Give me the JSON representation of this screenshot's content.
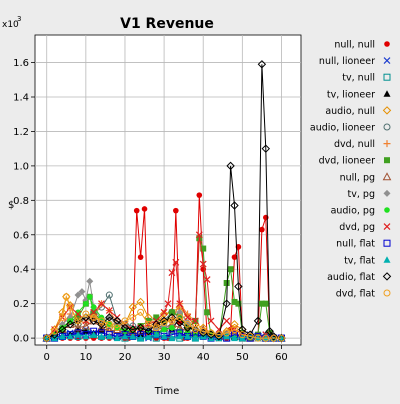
{
  "chart_data": {
    "type": "line",
    "title": "V1 Revenue",
    "xlabel": "Time",
    "ylabel": "$",
    "y_multiplier_label": "x10",
    "y_multiplier_exp": "3",
    "xlim": [
      -3,
      65
    ],
    "ylim": [
      -0.04,
      1.76
    ],
    "xticks": [
      0,
      10,
      20,
      30,
      40,
      50,
      60
    ],
    "yticks": [
      0.0,
      0.2,
      0.4,
      0.6,
      0.8,
      1.0,
      1.2,
      1.4,
      1.6
    ],
    "ytick_labels": [
      "0.0",
      "0.2",
      "0.4",
      "0.6",
      "0.8",
      "1.0",
      "1.2",
      "1.4",
      "1.6"
    ],
    "grid": true,
    "legend_position": "right",
    "series": [
      {
        "name": "null, null",
        "color": "#e00000",
        "marker": "dot",
        "x": [
          0,
          2,
          4,
          6,
          8,
          10,
          12,
          14,
          16,
          18,
          20,
          21,
          22,
          23,
          24,
          25,
          26,
          28,
          30,
          31,
          32,
          33,
          34,
          35,
          36,
          38,
          39,
          40,
          41,
          42,
          44,
          46,
          47,
          48,
          49,
          50,
          52,
          54,
          55,
          56,
          57,
          58,
          60
        ],
        "y": [
          0,
          0,
          0,
          0,
          0,
          0,
          0,
          0,
          0,
          0,
          0,
          0,
          0.02,
          0.74,
          0.47,
          0.75,
          0.03,
          0,
          0,
          0,
          0.05,
          0.74,
          0.09,
          0,
          0,
          0.05,
          0.83,
          0.4,
          0.02,
          0,
          0,
          0,
          0.05,
          0.47,
          0.53,
          0.02,
          0,
          0,
          0.63,
          0.7,
          0.02,
          0,
          0
        ]
      },
      {
        "name": "null, lioneer",
        "color": "#2040d0",
        "marker": "x",
        "x": [
          0,
          2,
          4,
          6,
          8,
          10,
          12,
          14,
          16,
          18,
          20,
          22,
          24,
          26,
          28,
          30,
          32,
          34,
          36,
          38,
          40,
          42,
          44,
          46,
          48,
          50,
          52,
          54,
          56,
          58,
          60
        ],
        "y": [
          0,
          0,
          0.02,
          0.03,
          0.01,
          0.05,
          0.03,
          0.04,
          0.06,
          0.02,
          0.03,
          0.02,
          0.01,
          0,
          0.02,
          0.05,
          0.06,
          0.03,
          0.01,
          0.02,
          0.03,
          0.01,
          0,
          0.02,
          0.03,
          0,
          0.02,
          0.01,
          0.02,
          0,
          0
        ]
      },
      {
        "name": "tv, null",
        "color": "#009090",
        "marker": "square-open",
        "x": [
          0,
          2,
          4,
          6,
          8,
          10,
          12,
          14,
          16,
          18,
          20,
          22,
          24,
          26,
          28,
          30,
          32,
          34,
          36,
          38,
          40,
          42,
          44,
          46,
          48,
          50,
          52,
          54,
          56,
          58,
          60
        ],
        "y": [
          0,
          0,
          0.01,
          0.02,
          0.01,
          0.03,
          0.02,
          0.01,
          0.02,
          0.01,
          0,
          0.01,
          0,
          0.01,
          0,
          0.02,
          0.01,
          0,
          0.01,
          0,
          0.02,
          0,
          0.01,
          0,
          0.01,
          0,
          0,
          0.01,
          0,
          0,
          0
        ]
      },
      {
        "name": "tv, lioneer",
        "color": "#000000",
        "marker": "triangle",
        "x": [
          0,
          2,
          4,
          6,
          8,
          10,
          12,
          14,
          16,
          18,
          20,
          22,
          24,
          26,
          28,
          30,
          32,
          34,
          36,
          38,
          40,
          42,
          44,
          46,
          48,
          50,
          52,
          54,
          56,
          58,
          60
        ],
        "y": [
          0,
          0,
          0.01,
          0.02,
          0.05,
          0.04,
          0.03,
          0.05,
          0.08,
          0.06,
          0.04,
          0.03,
          0.02,
          0.05,
          0.07,
          0.06,
          0.05,
          0.12,
          0.08,
          0.05,
          0.03,
          0.01,
          0,
          0.02,
          0.01,
          0,
          0,
          0,
          0.02,
          0,
          0
        ]
      },
      {
        "name": "audio, null",
        "color": "#e69000",
        "marker": "diamond-open",
        "x": [
          0,
          2,
          4,
          5,
          6,
          8,
          10,
          12,
          14,
          16,
          18,
          20,
          22,
          24,
          26,
          28,
          30,
          32,
          34,
          36,
          38,
          40,
          42,
          44,
          46,
          48,
          50,
          52,
          54,
          56,
          58,
          60
        ],
        "y": [
          0,
          0.05,
          0.15,
          0.24,
          0.19,
          0.08,
          0.12,
          0.14,
          0.09,
          0.06,
          0.1,
          0.08,
          0.18,
          0.21,
          0.12,
          0.08,
          0.14,
          0.15,
          0.18,
          0.12,
          0.08,
          0.06,
          0.03,
          0.02,
          0.04,
          0.08,
          0.05,
          0.02,
          0.01,
          0,
          0,
          0
        ]
      },
      {
        "name": "audio, lioneer",
        "color": "#507070",
        "marker": "circle-open",
        "x": [
          0,
          2,
          4,
          6,
          8,
          10,
          12,
          14,
          16,
          18,
          20,
          22,
          24,
          26,
          28,
          30,
          32,
          34,
          36,
          38,
          40,
          42,
          44,
          46,
          48,
          50,
          52,
          54,
          56,
          58,
          60
        ],
        "y": [
          0,
          0.02,
          0.06,
          0.1,
          0.08,
          0.12,
          0.15,
          0.18,
          0.25,
          0.1,
          0.08,
          0.07,
          0.06,
          0.05,
          0.08,
          0.1,
          0.15,
          0.12,
          0.06,
          0.05,
          0.03,
          0.02,
          0.01,
          0.02,
          0.01,
          0,
          0.01,
          0,
          0.01,
          0,
          0
        ]
      },
      {
        "name": "dvd, null",
        "color": "#f08030",
        "marker": "plus",
        "x": [
          0,
          2,
          4,
          6,
          8,
          10,
          12,
          14,
          16,
          18,
          20,
          22,
          24,
          26,
          28,
          30,
          32,
          34,
          36,
          38,
          40,
          42,
          44,
          46,
          48,
          50,
          52,
          54,
          56,
          58,
          60
        ],
        "y": [
          0,
          0.03,
          0.08,
          0.14,
          0.1,
          0.09,
          0.12,
          0.2,
          0.16,
          0.09,
          0.07,
          0.05,
          0.06,
          0.04,
          0.08,
          0.11,
          0.1,
          0.2,
          0.14,
          0.05,
          0.04,
          0.02,
          0.01,
          0.03,
          0.02,
          0.01,
          0,
          0.01,
          0,
          0,
          0
        ]
      },
      {
        "name": "dvd, lioneer",
        "color": "#40a020",
        "marker": "square",
        "x": [
          0,
          2,
          4,
          6,
          8,
          10,
          11,
          12,
          14,
          16,
          18,
          20,
          22,
          24,
          26,
          28,
          30,
          32,
          34,
          36,
          38,
          39,
          40,
          41,
          42,
          44,
          46,
          47,
          48,
          49,
          50,
          52,
          54,
          55,
          56,
          57,
          58,
          60
        ],
        "y": [
          0,
          0.02,
          0.05,
          0.1,
          0.12,
          0.2,
          0.24,
          0.15,
          0.1,
          0.08,
          0.06,
          0.05,
          0.03,
          0.07,
          0.1,
          0.12,
          0.08,
          0.15,
          0.13,
          0.06,
          0.1,
          0.58,
          0.52,
          0.15,
          0.02,
          0,
          0.32,
          0.4,
          0.21,
          0.2,
          0.03,
          0,
          0.02,
          0.2,
          0.2,
          0.03,
          0,
          0
        ]
      },
      {
        "name": "null, pg",
        "color": "#a05030",
        "marker": "triangle-open",
        "x": [
          0,
          2,
          4,
          6,
          8,
          10,
          12,
          14,
          16,
          18,
          20,
          22,
          24,
          26,
          28,
          30,
          32,
          34,
          36,
          38,
          40,
          42,
          44,
          46,
          48,
          50,
          52,
          54,
          56,
          58,
          60
        ],
        "y": [
          0,
          0.02,
          0.05,
          0.08,
          0.06,
          0.07,
          0.1,
          0.06,
          0.04,
          0.05,
          0.03,
          0.02,
          0.04,
          0.03,
          0.05,
          0.06,
          0.08,
          0.06,
          0.04,
          0.03,
          0.05,
          0.02,
          0.01,
          0.02,
          0.03,
          0.01,
          0,
          0.01,
          0,
          0,
          0
        ]
      },
      {
        "name": "tv, pg",
        "color": "#909090",
        "marker": "diamond",
        "x": [
          0,
          2,
          4,
          6,
          8,
          9,
          10,
          11,
          12,
          14,
          16,
          18,
          20,
          22,
          24,
          26,
          28,
          30,
          32,
          34,
          36,
          38,
          40,
          42,
          44,
          46,
          48,
          50,
          52,
          54,
          56,
          58,
          60
        ],
        "y": [
          0,
          0.03,
          0.08,
          0.12,
          0.25,
          0.27,
          0.22,
          0.33,
          0.18,
          0.1,
          0.12,
          0.08,
          0.06,
          0.05,
          0.06,
          0.04,
          0.05,
          0.07,
          0.06,
          0.15,
          0.09,
          0.05,
          0.03,
          0.02,
          0.01,
          0.02,
          0.01,
          0,
          0.01,
          0,
          0,
          0,
          0
        ]
      },
      {
        "name": "audio, pg",
        "color": "#20e020",
        "marker": "dot",
        "x": [
          0,
          2,
          4,
          6,
          8,
          10,
          11,
          12,
          14,
          16,
          18,
          20,
          22,
          24,
          26,
          28,
          30,
          32,
          34,
          36,
          38,
          40,
          42,
          44,
          46,
          48,
          50,
          52,
          54,
          56,
          58,
          60
        ],
        "y": [
          0,
          0.02,
          0.06,
          0.1,
          0.15,
          0.2,
          0.24,
          0.18,
          0.12,
          0.08,
          0.06,
          0.04,
          0.05,
          0.06,
          0.04,
          0.03,
          0.05,
          0.06,
          0.04,
          0.03,
          0.02,
          0.01,
          0.02,
          0,
          0.01,
          0,
          0,
          0.01,
          0,
          0,
          0,
          0
        ]
      },
      {
        "name": "dvd, pg",
        "color": "#e02020",
        "marker": "x",
        "x": [
          0,
          2,
          4,
          6,
          8,
          10,
          12,
          14,
          16,
          18,
          20,
          22,
          24,
          26,
          28,
          30,
          31,
          32,
          33,
          34,
          36,
          38,
          39,
          40,
          41,
          42,
          44,
          46,
          48,
          50,
          52,
          54,
          56,
          58,
          60
        ],
        "y": [
          0,
          0.05,
          0.12,
          0.18,
          0.14,
          0.1,
          0.15,
          0.2,
          0.16,
          0.12,
          0.08,
          0.05,
          0.06,
          0.08,
          0.1,
          0.15,
          0.2,
          0.38,
          0.44,
          0.2,
          0.12,
          0.1,
          0.6,
          0.43,
          0.34,
          0.1,
          0.05,
          0.1,
          0.05,
          0.03,
          0.01,
          0,
          0.02,
          0,
          0
        ]
      },
      {
        "name": "null, flat",
        "color": "#0000d0",
        "marker": "square-open",
        "x": [
          0,
          2,
          4,
          6,
          8,
          10,
          12,
          14,
          16,
          18,
          20,
          22,
          24,
          26,
          28,
          30,
          32,
          34,
          36,
          38,
          40,
          42,
          44,
          46,
          48,
          50,
          52,
          54,
          56,
          58,
          60
        ],
        "y": [
          0,
          0,
          0.01,
          0.02,
          0.03,
          0.02,
          0.04,
          0.03,
          0.02,
          0.01,
          0.02,
          0.01,
          0.02,
          0.03,
          0.02,
          0.01,
          0.02,
          0.03,
          0.01,
          0.02,
          0.01,
          0,
          0.01,
          0,
          0.02,
          0.01,
          0,
          0.01,
          0,
          0,
          0
        ]
      },
      {
        "name": "tv, flat",
        "color": "#00b0b0",
        "marker": "triangle",
        "x": [
          0,
          2,
          4,
          6,
          8,
          10,
          12,
          14,
          16,
          18,
          20,
          22,
          24,
          26,
          28,
          30,
          32,
          34,
          36,
          38,
          40,
          42,
          44,
          46,
          48,
          50,
          52,
          54,
          56,
          58,
          60
        ],
        "y": [
          0,
          0,
          0.01,
          0.01,
          0.02,
          0.01,
          0.02,
          0.01,
          0.01,
          0,
          0.01,
          0.01,
          0,
          0.01,
          0.02,
          0.01,
          0,
          0.01,
          0.01,
          0,
          0.01,
          0,
          0,
          0.01,
          0,
          0,
          0.01,
          0,
          0,
          0,
          0
        ]
      },
      {
        "name": "audio, flat",
        "color": "#000000",
        "marker": "diamond-open",
        "x": [
          0,
          2,
          4,
          6,
          8,
          10,
          12,
          14,
          16,
          18,
          20,
          22,
          24,
          26,
          28,
          30,
          32,
          34,
          36,
          38,
          40,
          42,
          44,
          46,
          47,
          48,
          49,
          50,
          52,
          54,
          55,
          56,
          57,
          58,
          60
        ],
        "y": [
          0,
          0.02,
          0.05,
          0.08,
          0.1,
          0.12,
          0.1,
          0.08,
          0.12,
          0.1,
          0.06,
          0.05,
          0.06,
          0.04,
          0.08,
          0.1,
          0.12,
          0.09,
          0.06,
          0.05,
          0.03,
          0.02,
          0.01,
          0.2,
          1.0,
          0.77,
          0.3,
          0.05,
          0.02,
          0.1,
          1.59,
          1.1,
          0.04,
          0.01,
          0
        ]
      },
      {
        "name": "dvd, flat",
        "color": "#f0a020",
        "marker": "circle-open",
        "x": [
          0,
          2,
          4,
          5,
          6,
          8,
          10,
          12,
          14,
          16,
          18,
          20,
          22,
          24,
          26,
          28,
          30,
          32,
          34,
          36,
          38,
          40,
          42,
          44,
          46,
          48,
          50,
          52,
          54,
          56,
          58,
          60
        ],
        "y": [
          0,
          0.04,
          0.12,
          0.24,
          0.18,
          0.1,
          0.14,
          0.12,
          0.1,
          0.08,
          0.06,
          0.1,
          0.12,
          0.15,
          0.08,
          0.06,
          0.09,
          0.1,
          0.12,
          0.08,
          0.05,
          0.04,
          0.03,
          0.02,
          0.03,
          0.05,
          0.02,
          0.01,
          0,
          0,
          0,
          0
        ]
      }
    ]
  }
}
